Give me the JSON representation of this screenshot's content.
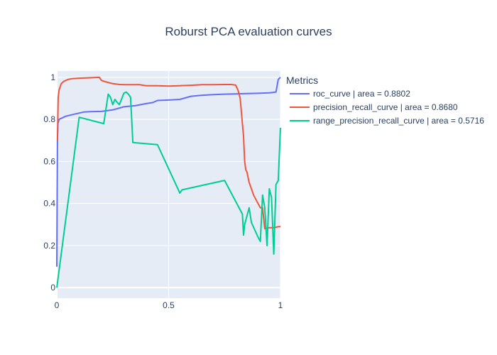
{
  "chart_data": {
    "type": "line",
    "title": "Roburst PCA evaluation curves",
    "xlabel": "",
    "ylabel": "",
    "xlim": [
      0,
      1
    ],
    "ylim": [
      -0.05,
      1.03
    ],
    "x_ticks": [
      0,
      0.5,
      1
    ],
    "x_tick_labels": [
      "0",
      "0.5",
      "1"
    ],
    "y_ticks": [
      0,
      0.2,
      0.4,
      0.6,
      0.8,
      1
    ],
    "y_tick_labels": [
      "0",
      "0.2",
      "0.4",
      "0.6",
      "0.8",
      "1"
    ],
    "grid": true,
    "legend_title": "Metrics",
    "legend_position": "right",
    "series": [
      {
        "name": "roc_curve | area = 0.8802",
        "color": "#636efa",
        "x": [
          0,
          0.003,
          0.005,
          0.01,
          0.02,
          0.03,
          0.04,
          0.06,
          0.08,
          0.1,
          0.12,
          0.15,
          0.2,
          0.25,
          0.3,
          0.35,
          0.4,
          0.43,
          0.45,
          0.5,
          0.55,
          0.6,
          0.65,
          0.7,
          0.75,
          0.8,
          0.85,
          0.9,
          0.95,
          0.98,
          0.99,
          1.0
        ],
        "y": [
          0.1,
          0.7,
          0.78,
          0.8,
          0.805,
          0.81,
          0.815,
          0.82,
          0.825,
          0.83,
          0.835,
          0.837,
          0.838,
          0.845,
          0.86,
          0.865,
          0.875,
          0.88,
          0.89,
          0.892,
          0.895,
          0.91,
          0.915,
          0.918,
          0.92,
          0.921,
          0.923,
          0.924,
          0.926,
          0.93,
          0.99,
          1.0
        ]
      },
      {
        "name": "precision_recall_curve | area = 0.8680",
        "color": "#ef553b",
        "x": [
          0.003,
          0.006,
          0.01,
          0.02,
          0.03,
          0.05,
          0.07,
          0.1,
          0.15,
          0.19,
          0.2,
          0.22,
          0.25,
          0.28,
          0.3,
          0.33,
          0.35,
          0.37,
          0.4,
          0.45,
          0.5,
          0.55,
          0.6,
          0.65,
          0.7,
          0.75,
          0.78,
          0.8,
          0.81,
          0.82,
          0.83,
          0.835,
          0.84,
          0.845,
          0.85,
          0.86,
          0.87,
          0.88,
          0.9,
          0.91,
          0.92,
          0.93,
          0.95,
          0.97,
          0.99,
          1.0
        ],
        "y": [
          0.7,
          0.9,
          0.94,
          0.97,
          0.98,
          0.99,
          0.994,
          0.996,
          0.998,
          1.0,
          0.985,
          0.978,
          0.97,
          0.966,
          0.965,
          0.965,
          0.965,
          0.965,
          0.96,
          0.96,
          0.958,
          0.96,
          0.962,
          0.965,
          0.965,
          0.966,
          0.966,
          0.963,
          0.94,
          0.9,
          0.78,
          0.72,
          0.6,
          0.56,
          0.55,
          0.5,
          0.47,
          0.44,
          0.4,
          0.38,
          0.38,
          0.28,
          0.285,
          0.285,
          0.29,
          0.29
        ]
      },
      {
        "name": "range_precision_recall_curve | area = 0.5716",
        "color": "#00cc96",
        "x": [
          0.0,
          0.0,
          0.1,
          0.21,
          0.23,
          0.24,
          0.25,
          0.26,
          0.27,
          0.28,
          0.3,
          0.31,
          0.32,
          0.33,
          0.34,
          0.45,
          0.55,
          0.56,
          0.75,
          0.83,
          0.835,
          0.84,
          0.86,
          0.87,
          0.9,
          0.91,
          0.92,
          0.93,
          0.94,
          0.95,
          0.96,
          0.97,
          0.98,
          0.99,
          1.0
        ],
        "y": [
          0.0,
          0.0,
          0.81,
          0.78,
          0.92,
          0.905,
          0.87,
          0.895,
          0.88,
          0.87,
          0.925,
          0.93,
          0.92,
          0.905,
          0.69,
          0.68,
          0.45,
          0.465,
          0.51,
          0.35,
          0.25,
          0.3,
          0.38,
          0.31,
          0.24,
          0.22,
          0.44,
          0.38,
          0.2,
          0.47,
          0.43,
          0.16,
          0.49,
          0.51,
          0.76
        ]
      }
    ]
  }
}
